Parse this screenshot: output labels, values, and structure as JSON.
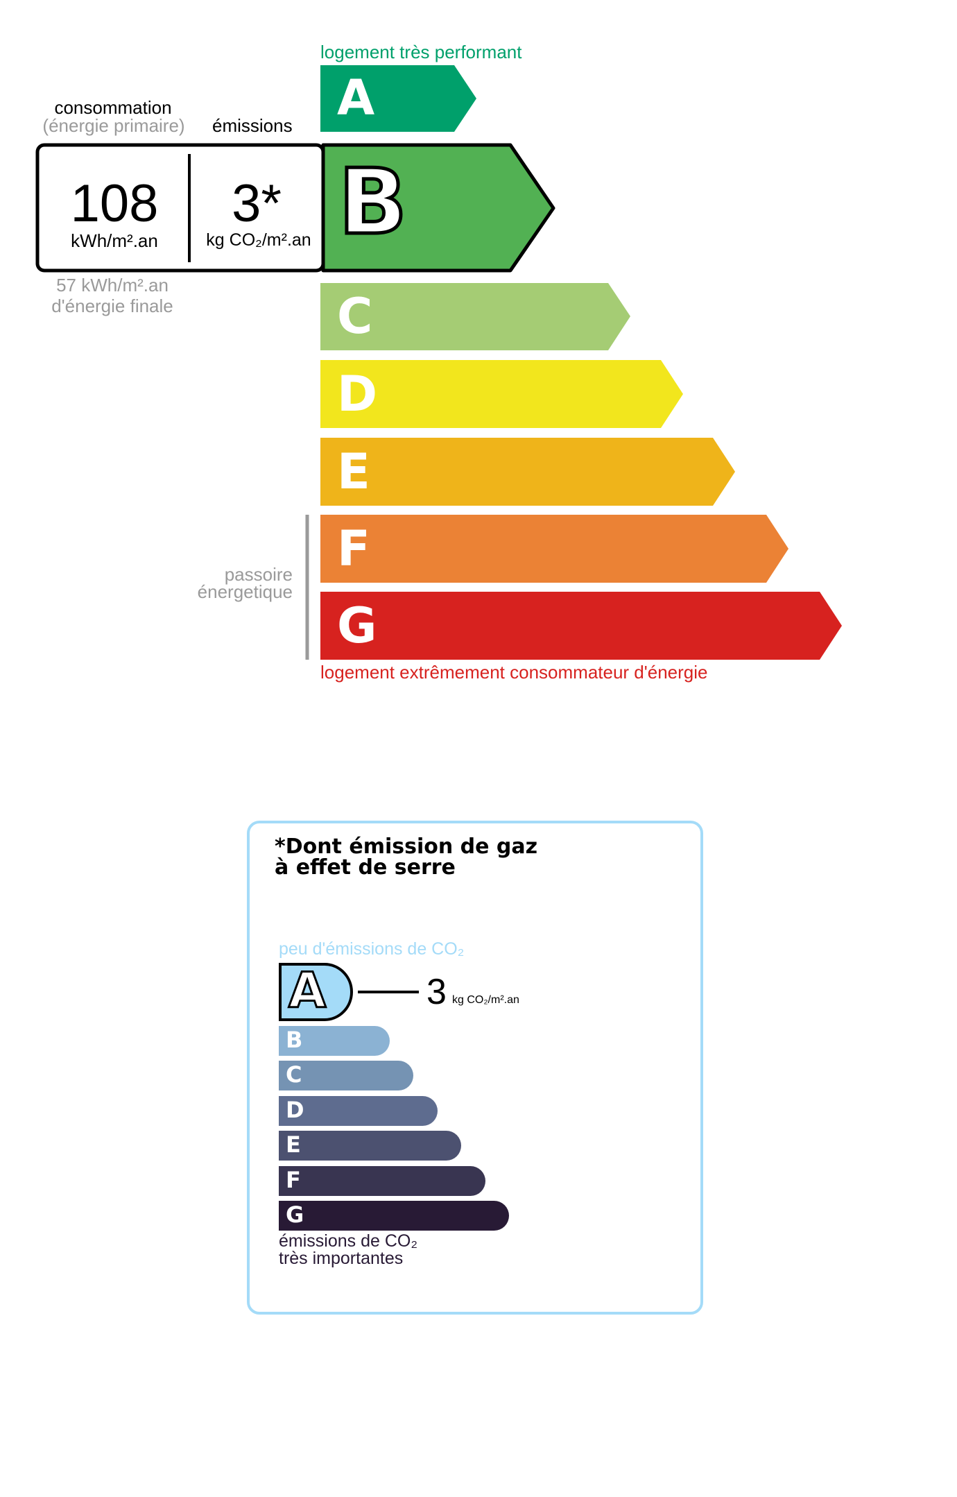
{
  "energy_label": {
    "top_caption": "logement très performant",
    "bottom_caption": "logement extrêmement consommateur d'énergie",
    "consumption_header": "consommation",
    "consumption_subheader": "(énergie primaire)",
    "emissions_header": "émissions",
    "consumption_value": "108",
    "consumption_unit": "kWh/m².an",
    "emissions_value": "3*",
    "emissions_unit": "kg CO₂/m².an",
    "final_energy_value": "57 kWh/m².an",
    "final_energy_label": "d'énergie finale",
    "passoire_line1": "passoire",
    "passoire_line2": "énergetique",
    "current_class": "B",
    "classes": [
      {
        "letter": "A",
        "color": "#00a06b"
      },
      {
        "letter": "B",
        "color": "#52b153"
      },
      {
        "letter": "C",
        "color": "#a5cc74"
      },
      {
        "letter": "D",
        "color": "#f2e61d"
      },
      {
        "letter": "E",
        "color": "#efb41a"
      },
      {
        "letter": "F",
        "color": "#eb8235"
      },
      {
        "letter": "G",
        "color": "#d7221f"
      }
    ],
    "top_caption_color": "#00a06b",
    "bottom_caption_color": "#d7221f"
  },
  "ges_label": {
    "title_line1": "*Dont émission de gaz",
    "title_line2": "à effet de serre",
    "top_caption": "peu d'émissions de CO₂",
    "bottom_caption_line1": "émissions de CO₂",
    "bottom_caption_line2": "très importantes",
    "current_class": "A",
    "value": "3",
    "unit": "kg CO₂/m².an",
    "border_color": "#a4dbf8",
    "classes": [
      {
        "letter": "A",
        "color": "#a4dbf8"
      },
      {
        "letter": "B",
        "color": "#8bb2d3"
      },
      {
        "letter": "C",
        "color": "#7593b3"
      },
      {
        "letter": "D",
        "color": "#5e6c8f"
      },
      {
        "letter": "E",
        "color": "#4c5170"
      },
      {
        "letter": "F",
        "color": "#393551"
      },
      {
        "letter": "G",
        "color": "#281a35"
      }
    ]
  }
}
